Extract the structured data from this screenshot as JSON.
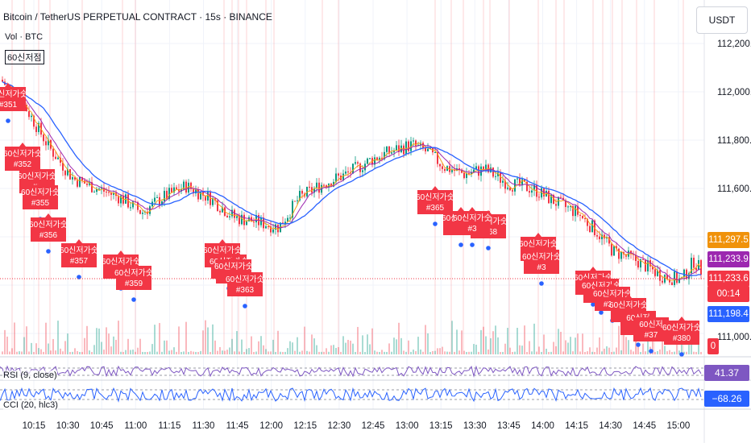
{
  "header": {
    "title": "Bitcoin / TetherUS PERPETUAL CONTRACT · 15s · BINANCE",
    "legend_vol": "Vol · BTC",
    "legend_ind": "60신저점"
  },
  "currency_button": "USDT",
  "price_axis": {
    "ticks": [
      "112,200.0",
      "112,000.0",
      "111,800.0",
      "111,600.0",
      "111,000.0"
    ],
    "tags": [
      {
        "label": "111,297.5",
        "color": "#f0920a"
      },
      {
        "label": "111,233.9",
        "color": "#9c27b0"
      },
      {
        "label": "111,233.6",
        "color": "#f23645"
      },
      {
        "label": "00:14",
        "color": "#f23645"
      },
      {
        "label": "111,198.4",
        "color": "#2962ff"
      },
      {
        "label": "0",
        "color": "#f23645"
      }
    ]
  },
  "time_axis": [
    "10:15",
    "10:30",
    "10:45",
    "11:00",
    "11:15",
    "11:30",
    "11:45",
    "12:00",
    "12:15",
    "12:30",
    "12:45",
    "13:00",
    "13:15",
    "13:30",
    "13:45",
    "14:00",
    "14:15",
    "14:30",
    "14:45",
    "15:00"
  ],
  "signals": [
    {
      "label": "60신저가숫",
      "id": "#351"
    },
    {
      "label": "60신저가숫",
      "id": "#352"
    },
    {
      "label": "60신저가숫",
      "id": "#3"
    },
    {
      "label": "60신저가숫",
      "id": "#355"
    },
    {
      "label": "60신저가숫",
      "id": "#356"
    },
    {
      "label": "60신저가숫",
      "id": "#357"
    },
    {
      "label": "60신저가숫",
      "id": "#3"
    },
    {
      "label": "60신저가숫",
      "id": "#359"
    },
    {
      "label": "60신저가숫",
      "id": "#3"
    },
    {
      "label": "60신저가숫",
      "id": "#3"
    },
    {
      "label": "60신저가숫",
      "id": "#3"
    },
    {
      "label": "60신저가숫",
      "id": "#363"
    },
    {
      "label": "60신저가숫",
      "id": "#365"
    },
    {
      "label": "60신저가숫",
      "id": "#3"
    },
    {
      "label": "60신저가숫",
      "id": "#368"
    },
    {
      "label": "60신저가숫",
      "id": "#3"
    },
    {
      "label": "60신저가숫",
      "id": "#370"
    },
    {
      "label": "60신저가숫",
      "id": "#3"
    },
    {
      "label": "60신저가숫",
      "id": "#3"
    },
    {
      "label": "60신저가숫",
      "id": "#3"
    },
    {
      "label": "60신저가숫",
      "id": "#375"
    },
    {
      "label": "60신저가숫",
      "id": "#3"
    },
    {
      "label": "60신저",
      "id": "#3"
    },
    {
      "label": "60신저",
      "id": "#37"
    },
    {
      "label": "60신저가숫",
      "id": "#380"
    }
  ],
  "rsi": {
    "label": "RSI (9, close)",
    "value": "41.37",
    "color": "#7e57c2"
  },
  "cci": {
    "label": "CCI (20, hlc3)",
    "value": "−68.26",
    "color": "#2962ff"
  },
  "colors": {
    "up": "#089981",
    "down": "#f23645",
    "ma_fast": "#f7a21b",
    "ma_mid": "#9c27b0",
    "ma_slow": "#2962ff",
    "label_bg": "#f23645"
  }
}
